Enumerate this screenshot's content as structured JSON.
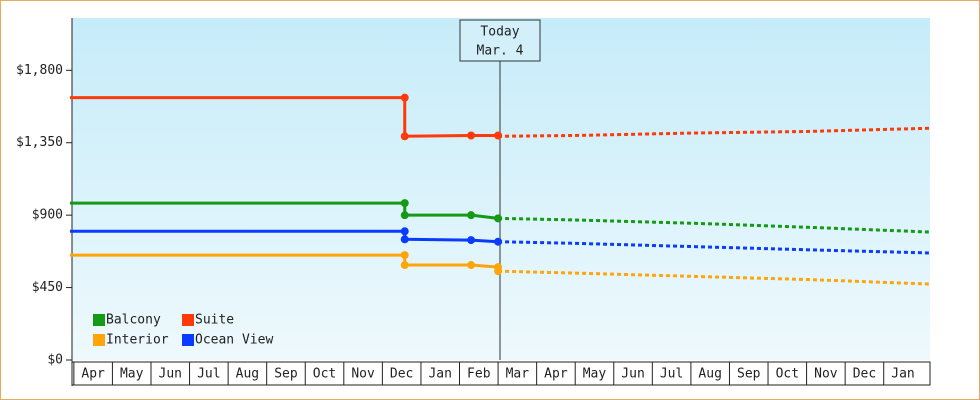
{
  "chart_data": {
    "type": "line",
    "xlim": [
      -0.1,
      22.2
    ],
    "ylim": [
      0,
      2125
    ],
    "yticks": [
      {
        "value": 0,
        "label": "$0"
      },
      {
        "value": 450,
        "label": "$450"
      },
      {
        "value": 900,
        "label": "$900"
      },
      {
        "value": 1350,
        "label": "$1,350"
      },
      {
        "value": 1800,
        "label": "$1,800"
      }
    ],
    "xticks": [
      {
        "value": 0,
        "label": "Apr"
      },
      {
        "value": 1,
        "label": "May"
      },
      {
        "value": 2,
        "label": "Jun"
      },
      {
        "value": 3,
        "label": "Jul"
      },
      {
        "value": 4,
        "label": "Aug"
      },
      {
        "value": 5,
        "label": "Sep"
      },
      {
        "value": 6,
        "label": "Oct"
      },
      {
        "value": 7,
        "label": "Nov"
      },
      {
        "value": 8,
        "label": "Dec"
      },
      {
        "value": 9,
        "label": "Jan"
      },
      {
        "value": 10,
        "label": "Feb"
      },
      {
        "value": 11,
        "label": "Mar"
      },
      {
        "value": 12,
        "label": "Apr"
      },
      {
        "value": 13,
        "label": "May"
      },
      {
        "value": 14,
        "label": "Jun"
      },
      {
        "value": 15,
        "label": "Jul"
      },
      {
        "value": 16,
        "label": "Aug"
      },
      {
        "value": 17,
        "label": "Sep"
      },
      {
        "value": 18,
        "label": "Oct"
      },
      {
        "value": 19,
        "label": "Nov"
      },
      {
        "value": 20,
        "label": "Dec"
      },
      {
        "value": 21,
        "label": "Jan"
      }
    ],
    "today": {
      "x": 11.05,
      "label": "Today",
      "date": "Mar. 4"
    },
    "series": [
      {
        "name": "Balcony",
        "color": "#149a14",
        "x": [
          -0.1,
          8.58,
          8.58,
          10.3,
          11.0
        ],
        "values": [
          975,
          975,
          900,
          900,
          880
        ],
        "forecast_x": [
          11.0,
          13,
          16,
          19,
          22.2
        ],
        "forecast_values": [
          880,
          870,
          850,
          825,
          795
        ]
      },
      {
        "name": "Suite",
        "color": "#ff3a0a",
        "x": [
          -0.1,
          8.58,
          8.58,
          10.3,
          11.0
        ],
        "values": [
          1630,
          1630,
          1390,
          1395,
          1395
        ],
        "forecast_x": [
          11.0,
          13,
          16,
          19,
          22.2
        ],
        "forecast_values": [
          1390,
          1395,
          1410,
          1420,
          1440
        ]
      },
      {
        "name": "Interior",
        "color": "#ffa50a",
        "x": [
          -0.1,
          8.58,
          8.58,
          10.3,
          11.0,
          11.0
        ],
        "values": [
          652,
          652,
          590,
          590,
          577,
          552
        ],
        "forecast_x": [
          11.0,
          13,
          16,
          19,
          22.2
        ],
        "forecast_values": [
          552,
          540,
          520,
          500,
          472
        ]
      },
      {
        "name": "Ocean View",
        "color": "#0a3cff",
        "x": [
          -0.1,
          8.58,
          8.58,
          10.3,
          11.0
        ],
        "values": [
          800,
          800,
          750,
          745,
          735
        ],
        "forecast_x": [
          11.0,
          13,
          16,
          19,
          22.2
        ],
        "forecast_values": [
          735,
          725,
          705,
          685,
          665
        ]
      }
    ]
  }
}
